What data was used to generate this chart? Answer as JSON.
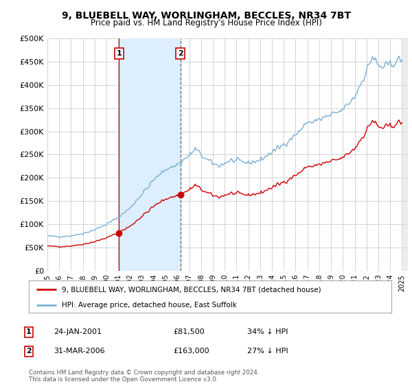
{
  "title": "9, BLUEBELL WAY, WORLINGHAM, BECCLES, NR34 7BT",
  "subtitle": "Price paid vs. HM Land Registry's House Price Index (HPI)",
  "title_fontsize": 10,
  "subtitle_fontsize": 8.5,
  "background_color": "#ffffff",
  "plot_bg_color": "#ffffff",
  "grid_color": "#cccccc",
  "sale1_date": 2001.07,
  "sale1_price": 81500,
  "sale2_date": 2006.25,
  "sale2_price": 163000,
  "legend_house": "9, BLUEBELL WAY, WORLINGHAM, BECCLES, NR34 7BT (detached house)",
  "legend_hpi": "HPI: Average price, detached house, East Suffolk",
  "footer": "Contains HM Land Registry data © Crown copyright and database right 2024.\nThis data is licensed under the Open Government Licence v3.0.",
  "house_color": "#cc0000",
  "hpi_color": "#7ab0d4",
  "shade_color": "#ddeeff",
  "ylim": [
    0,
    500000
  ],
  "xlim_start": 1995.0,
  "xlim_end": 2025.5,
  "yticks": [
    0,
    50000,
    100000,
    150000,
    200000,
    250000,
    300000,
    350000,
    400000,
    450000,
    500000
  ],
  "xticks": [
    1995,
    1996,
    1997,
    1998,
    1999,
    2000,
    2001,
    2002,
    2003,
    2004,
    2005,
    2006,
    2007,
    2008,
    2009,
    2010,
    2011,
    2012,
    2013,
    2014,
    2015,
    2016,
    2017,
    2018,
    2019,
    2020,
    2021,
    2022,
    2023,
    2024,
    2025
  ]
}
